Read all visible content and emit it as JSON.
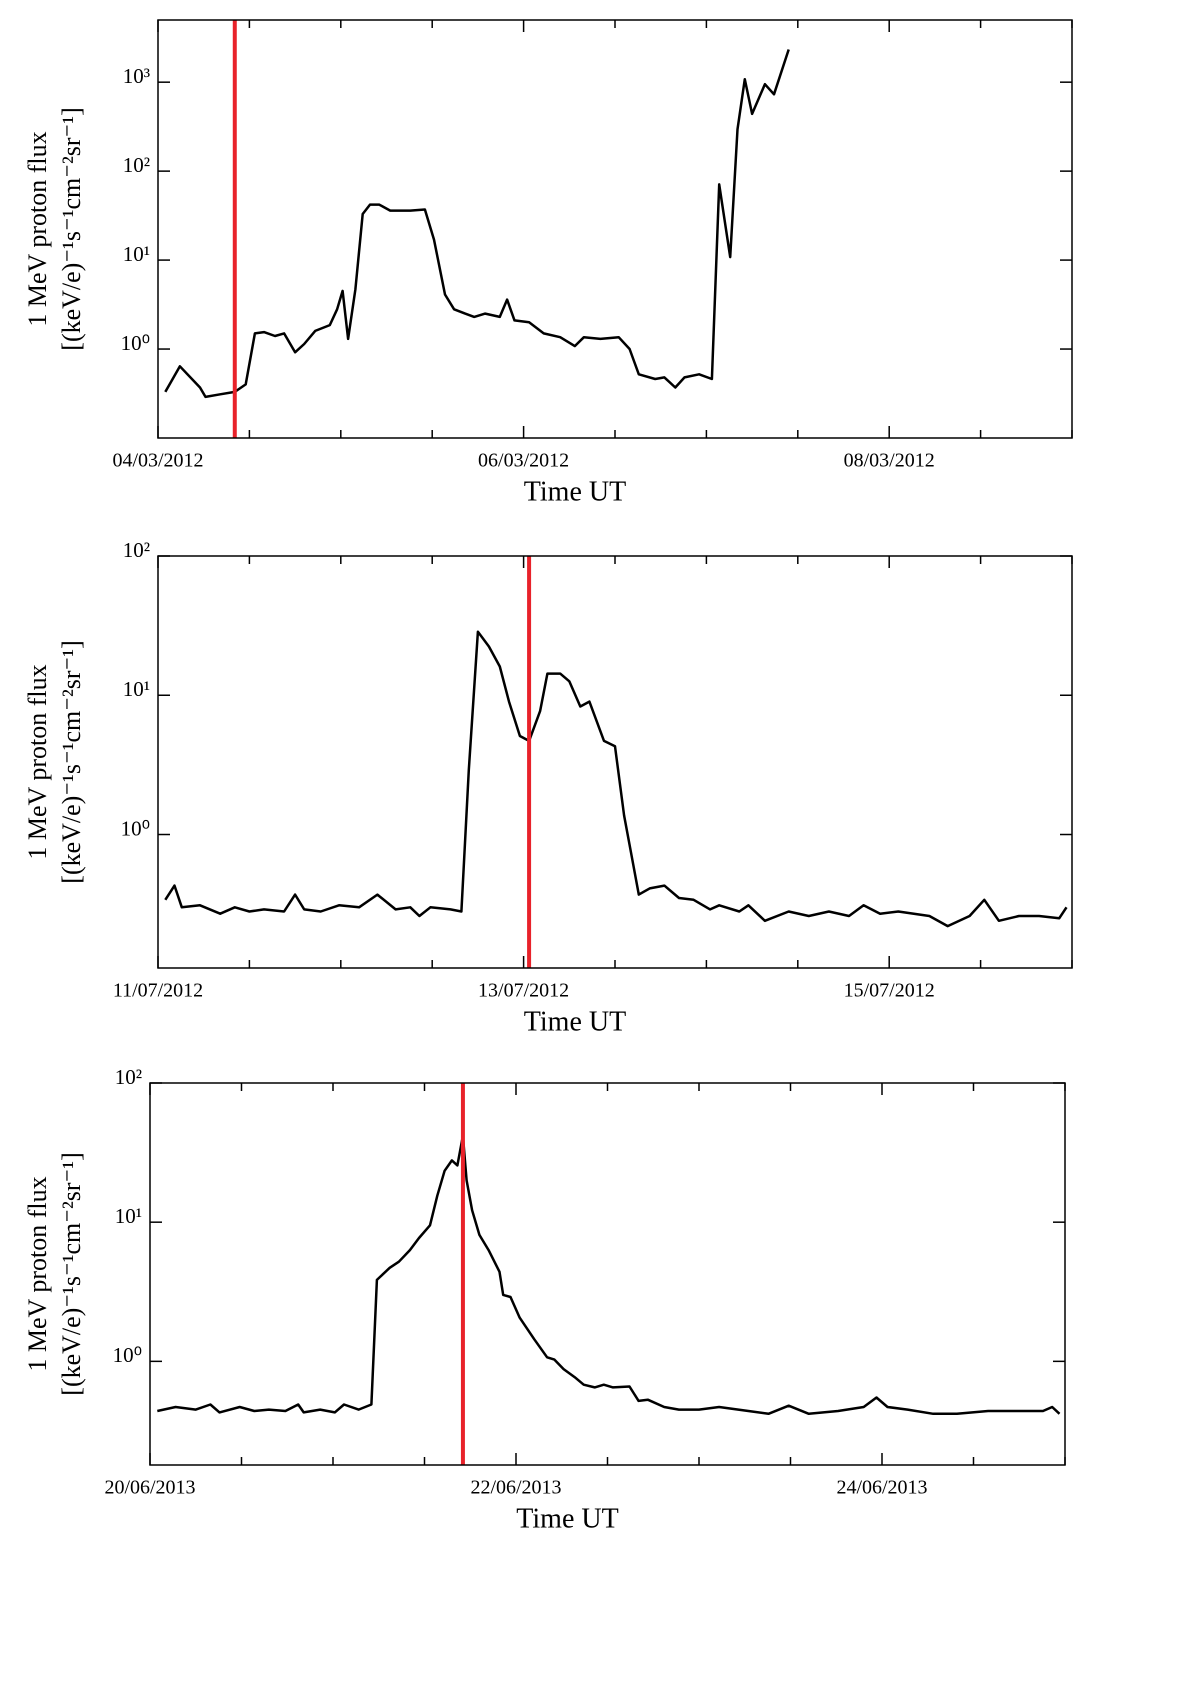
{
  "chart_data": [
    {
      "type": "line",
      "log_y": true,
      "color": "#000000",
      "xlabel": "Time UT",
      "ylabel": [
        "1 MeV proton flux",
        "[(keV/e)⁻¹s⁻¹cm⁻²sr⁻¹]"
      ],
      "xlim": [
        0,
        5
      ],
      "ylim": [
        0.1,
        5000
      ],
      "xticks": [
        {
          "value": 0,
          "label": "04/03/2012"
        },
        {
          "value": 2,
          "label": "06/03/2012"
        },
        {
          "value": 4,
          "label": "08/03/2012"
        }
      ],
      "xminor_ticks": [
        0.5,
        1,
        1.5,
        2.5,
        3,
        3.5,
        4.5,
        5
      ],
      "yticks": [
        {
          "value": 1,
          "label": "10⁰"
        },
        {
          "value": 10,
          "label": "10¹"
        },
        {
          "value": 100,
          "label": "10²"
        },
        {
          "value": 1000,
          "label": "10³"
        }
      ],
      "markers": [
        {
          "x": 0.42,
          "color": "#e8222a"
        }
      ],
      "x": [
        0.04,
        0.12,
        0.23,
        0.26,
        0.34,
        0.42,
        0.48,
        0.53,
        0.58,
        0.64,
        0.69,
        0.75,
        0.8,
        0.86,
        0.94,
        0.98,
        1.01,
        1.04,
        1.08,
        1.12,
        1.16,
        1.21,
        1.27,
        1.38,
        1.46,
        1.51,
        1.57,
        1.62,
        1.68,
        1.73,
        1.79,
        1.87,
        1.91,
        1.95,
        2.03,
        2.11,
        2.2,
        2.28,
        2.33,
        2.42,
        2.52,
        2.58,
        2.63,
        2.72,
        2.77,
        2.83,
        2.88,
        2.96,
        3.03,
        3.07,
        3.13,
        3.17,
        3.21,
        3.25,
        3.32,
        3.37,
        3.45
      ],
      "values": [
        0.33,
        0.64,
        0.37,
        0.29,
        0.31,
        0.33,
        0.4,
        1.5,
        1.55,
        1.4,
        1.5,
        0.92,
        1.14,
        1.6,
        1.86,
        2.8,
        4.5,
        1.3,
        4.7,
        33,
        42,
        42,
        36,
        36,
        37,
        17,
        4.1,
        2.8,
        2.5,
        2.3,
        2.5,
        2.3,
        3.6,
        2.1,
        2.0,
        1.5,
        1.36,
        1.08,
        1.36,
        1.3,
        1.36,
        1.0,
        0.52,
        0.46,
        0.48,
        0.37,
        0.48,
        0.52,
        0.46,
        71,
        10.8,
        295,
        1080,
        440,
        950,
        730,
        2330
      ]
    },
    {
      "type": "line",
      "log_y": true,
      "color": "#000000",
      "xlabel": "Time UT",
      "ylabel": [
        "1 MeV proton flux",
        "[(keV/e)⁻¹s⁻¹cm⁻²sr⁻¹]"
      ],
      "xlim": [
        0,
        5
      ],
      "ylim": [
        0.11,
        100
      ],
      "xticks": [
        {
          "value": 0,
          "label": "11/07/2012"
        },
        {
          "value": 2,
          "label": "13/07/2012"
        },
        {
          "value": 4,
          "label": "15/07/2012"
        }
      ],
      "xminor_ticks": [
        0.5,
        1,
        1.5,
        2.5,
        3,
        3.5,
        4.5,
        5
      ],
      "yticks": [
        {
          "value": 1,
          "label": "10⁰"
        },
        {
          "value": 10,
          "label": "10¹"
        },
        {
          "value": 100,
          "label": "10²"
        }
      ],
      "markers": [
        {
          "x": 2.03,
          "color": "#e8222a"
        }
      ],
      "x": [
        0.04,
        0.09,
        0.13,
        0.23,
        0.34,
        0.42,
        0.5,
        0.58,
        0.69,
        0.75,
        0.8,
        0.89,
        0.99,
        1.1,
        1.2,
        1.3,
        1.38,
        1.43,
        1.49,
        1.6,
        1.66,
        1.7,
        1.75,
        1.81,
        1.87,
        1.92,
        1.98,
        2.03,
        2.09,
        2.13,
        2.2,
        2.25,
        2.31,
        2.36,
        2.44,
        2.5,
        2.55,
        2.59,
        2.63,
        2.69,
        2.77,
        2.85,
        2.93,
        3.02,
        3.07,
        3.18,
        3.23,
        3.32,
        3.45,
        3.56,
        3.67,
        3.78,
        3.86,
        3.95,
        4.05,
        4.22,
        4.32,
        4.44,
        4.52,
        4.6,
        4.71,
        4.82,
        4.93,
        4.97
      ],
      "values": [
        0.34,
        0.43,
        0.3,
        0.31,
        0.27,
        0.3,
        0.28,
        0.29,
        0.28,
        0.37,
        0.29,
        0.28,
        0.31,
        0.3,
        0.37,
        0.29,
        0.3,
        0.26,
        0.3,
        0.29,
        0.28,
        2.9,
        28.6,
        22.4,
        16.1,
        9.0,
        5.1,
        4.7,
        7.7,
        14.3,
        14.3,
        12.6,
        8.3,
        9.0,
        4.7,
        4.3,
        1.37,
        0.71,
        0.37,
        0.41,
        0.43,
        0.35,
        0.34,
        0.29,
        0.31,
        0.28,
        0.31,
        0.24,
        0.28,
        0.26,
        0.28,
        0.26,
        0.31,
        0.27,
        0.28,
        0.26,
        0.22,
        0.26,
        0.34,
        0.24,
        0.26,
        0.26,
        0.25,
        0.3
      ]
    },
    {
      "type": "line",
      "log_y": true,
      "color": "#000000",
      "xlabel": "Time UT",
      "ylabel": [
        "1 MeV proton flux",
        "[(keV/e)⁻¹s⁻¹cm⁻²sr⁻¹]"
      ],
      "xlim": [
        0,
        5
      ],
      "ylim": [
        0.18,
        100
      ],
      "xticks": [
        {
          "value": 0,
          "label": "20/06/2013"
        },
        {
          "value": 2,
          "label": "22/06/2013"
        },
        {
          "value": 4,
          "label": "24/06/2013"
        }
      ],
      "xminor_ticks": [
        0.5,
        1,
        1.5,
        2.5,
        3,
        3.5,
        4.5,
        5
      ],
      "yticks": [
        {
          "value": 1,
          "label": "10⁰"
        },
        {
          "value": 10,
          "label": "10¹"
        },
        {
          "value": 100,
          "label": "10²"
        }
      ],
      "markers": [
        {
          "x": 1.71,
          "color": "#e8222a"
        }
      ],
      "x": [
        0.04,
        0.14,
        0.25,
        0.33,
        0.38,
        0.49,
        0.57,
        0.65,
        0.74,
        0.81,
        0.84,
        0.93,
        1.01,
        1.06,
        1.14,
        1.21,
        1.24,
        1.31,
        1.36,
        1.42,
        1.47,
        1.53,
        1.57,
        1.61,
        1.65,
        1.68,
        1.71,
        1.73,
        1.76,
        1.8,
        1.85,
        1.91,
        1.93,
        1.97,
        2.02,
        2.1,
        2.17,
        2.21,
        2.26,
        2.32,
        2.37,
        2.43,
        2.48,
        2.53,
        2.62,
        2.67,
        2.72,
        2.81,
        2.89,
        3.0,
        3.11,
        3.27,
        3.38,
        3.49,
        3.6,
        3.76,
        3.9,
        3.97,
        4.03,
        4.14,
        4.28,
        4.41,
        4.58,
        4.74,
        4.88,
        4.93,
        4.97
      ],
      "values": [
        0.44,
        0.47,
        0.45,
        0.49,
        0.43,
        0.47,
        0.44,
        0.45,
        0.44,
        0.49,
        0.43,
        0.45,
        0.43,
        0.49,
        0.45,
        0.49,
        3.85,
        4.7,
        5.2,
        6.3,
        7.7,
        9.5,
        15.5,
        23.4,
        27.8,
        25.6,
        41.8,
        20,
        12.2,
        8.1,
        6.3,
        4.4,
        3.0,
        2.9,
        2.06,
        1.44,
        1.07,
        1.03,
        0.88,
        0.77,
        0.68,
        0.65,
        0.68,
        0.65,
        0.66,
        0.52,
        0.53,
        0.47,
        0.45,
        0.45,
        0.47,
        0.44,
        0.42,
        0.48,
        0.42,
        0.44,
        0.47,
        0.55,
        0.47,
        0.45,
        0.42,
        0.42,
        0.44,
        0.44,
        0.44,
        0.47,
        0.42
      ]
    }
  ]
}
